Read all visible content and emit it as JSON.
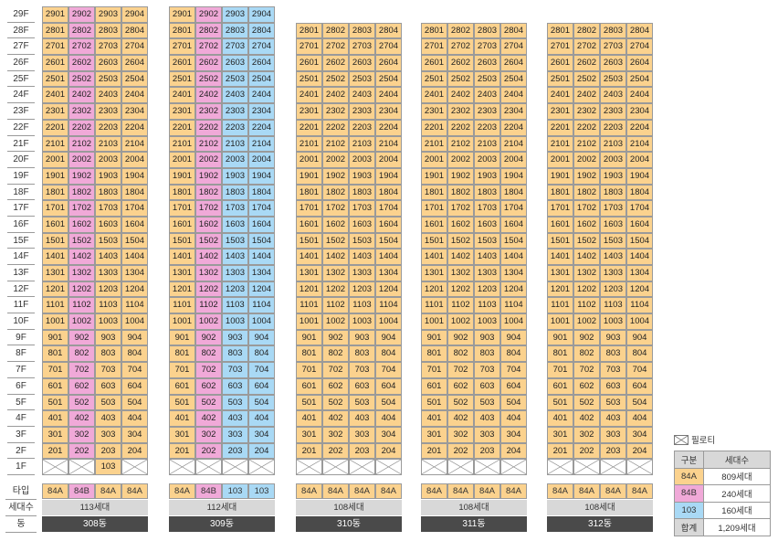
{
  "floors": [
    "29F",
    "28F",
    "27F",
    "26F",
    "25F",
    "24F",
    "23F",
    "22F",
    "21F",
    "20F",
    "19F",
    "18F",
    "17F",
    "16F",
    "15F",
    "14F",
    "13F",
    "12F",
    "11F",
    "10F",
    "9F",
    "8F",
    "7F",
    "6F",
    "5F",
    "4F",
    "3F",
    "2F",
    "1F"
  ],
  "row_labels": {
    "type": "타입",
    "households": "세대수",
    "building": "동"
  },
  "colors": {
    "84A": "#fbd28e",
    "84B": "#f0a9d8",
    "103": "#a9d9f5",
    "piloti": "#ffffff",
    "households_bg": "#d8d8d8",
    "building_bg": "#4a4a4a"
  },
  "buildings": [
    {
      "name": "308동",
      "households": "113세대",
      "types": [
        "84A",
        "84B",
        "84A",
        "84A"
      ],
      "top_floor": 29,
      "first_floor_units": [
        "",
        "",
        "103",
        ""
      ]
    },
    {
      "name": "309동",
      "households": "112세대",
      "types": [
        "84A",
        "84B",
        "103",
        "103"
      ],
      "top_floor": 29,
      "first_floor_units": [
        "",
        "",
        "",
        ""
      ]
    },
    {
      "name": "310동",
      "households": "108세대",
      "types": [
        "84A",
        "84A",
        "84A",
        "84A"
      ],
      "top_floor": 28,
      "first_floor_units": [
        "",
        "",
        "",
        ""
      ]
    },
    {
      "name": "311동",
      "households": "108세대",
      "types": [
        "84A",
        "84A",
        "84A",
        "84A"
      ],
      "top_floor": 28,
      "first_floor_units": [
        "",
        "",
        "",
        ""
      ]
    },
    {
      "name": "312동",
      "households": "108세대",
      "types": [
        "84A",
        "84A",
        "84A",
        "84A"
      ],
      "top_floor": 28,
      "first_floor_units": [
        "",
        "",
        "",
        ""
      ]
    }
  ],
  "legend": {
    "piloti_label": "필로티",
    "header": {
      "col1": "구분",
      "col2": "세대수"
    },
    "rows": [
      {
        "type": "84A",
        "count": "809세대"
      },
      {
        "type": "84B",
        "count": "240세대"
      },
      {
        "type": "103",
        "count": "160세대"
      }
    ],
    "total": {
      "label": "합계",
      "count": "1,209세대"
    }
  }
}
